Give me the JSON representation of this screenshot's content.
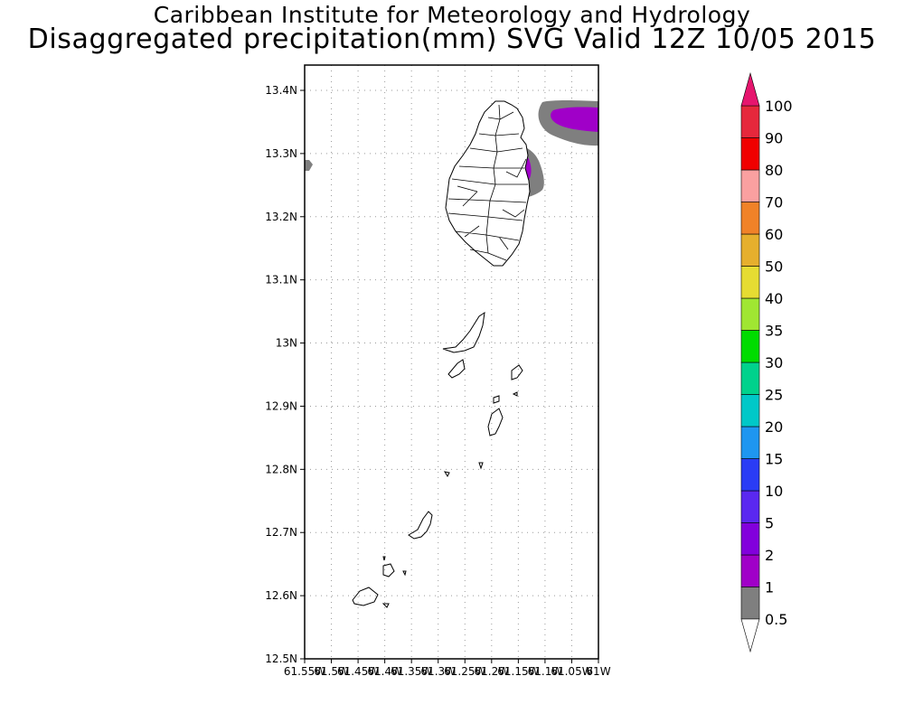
{
  "title": "Caribbean Institute for Meteorology and Hydrology",
  "subtitle": "Disaggregated precipitation(mm) SVG Valid 12Z 10/05 2015",
  "map": {
    "lon_range": [
      -61.55,
      -61.0
    ],
    "lat_range": [
      12.5,
      13.44
    ],
    "lat_ticks": [
      {
        "value": 12.5,
        "label": "12.5N"
      },
      {
        "value": 12.6,
        "label": "12.6N"
      },
      {
        "value": 12.7,
        "label": "12.7N"
      },
      {
        "value": 12.8,
        "label": "12.8N"
      },
      {
        "value": 12.9,
        "label": "12.9N"
      },
      {
        "value": 13.0,
        "label": "13N"
      },
      {
        "value": 13.1,
        "label": "13.1N"
      },
      {
        "value": 13.2,
        "label": "13.2N"
      },
      {
        "value": 13.3,
        "label": "13.3N"
      },
      {
        "value": 13.4,
        "label": "13.4N"
      }
    ],
    "lon_ticks": [
      {
        "value": -61.55,
        "label": "61.55W"
      },
      {
        "value": -61.5,
        "label": "61.5W"
      },
      {
        "value": -61.45,
        "label": "61.45W"
      },
      {
        "value": -61.4,
        "label": "61.4W"
      },
      {
        "value": -61.35,
        "label": "61.35W"
      },
      {
        "value": -61.3,
        "label": "61.3W"
      },
      {
        "value": -61.25,
        "label": "61.25W"
      },
      {
        "value": -61.2,
        "label": "61.2W"
      },
      {
        "value": -61.15,
        "label": "61.15W"
      },
      {
        "value": -61.1,
        "label": "61.1W"
      },
      {
        "value": -61.05,
        "label": "61.05W"
      },
      {
        "value": -61.0,
        "label": "61W"
      }
    ],
    "grid": true
  },
  "colorbar": {
    "levels": [
      {
        "label": "0.5",
        "color": "#7f7f7f"
      },
      {
        "label": "1",
        "color": "#a000c8"
      },
      {
        "label": "2",
        "color": "#8200dc"
      },
      {
        "label": "5",
        "color": "#5a28f0"
      },
      {
        "label": "10",
        "color": "#2a3cf5"
      },
      {
        "label": "15",
        "color": "#1e96f0"
      },
      {
        "label": "20",
        "color": "#00c8c8"
      },
      {
        "label": "25",
        "color": "#00d28c"
      },
      {
        "label": "30",
        "color": "#00dc00"
      },
      {
        "label": "35",
        "color": "#a0e632"
      },
      {
        "label": "40",
        "color": "#e6dc32"
      },
      {
        "label": "50",
        "color": "#e6af2d"
      },
      {
        "label": "60",
        "color": "#f08228"
      },
      {
        "label": "70",
        "color": "#faa0a0"
      },
      {
        "label": "80",
        "color": "#f00000"
      },
      {
        "label": "90",
        "color": "#e6283c"
      },
      {
        "label": "100",
        "color": "#f0286e"
      }
    ],
    "over_color": "#e6156e",
    "under_color": "#ffffff"
  }
}
